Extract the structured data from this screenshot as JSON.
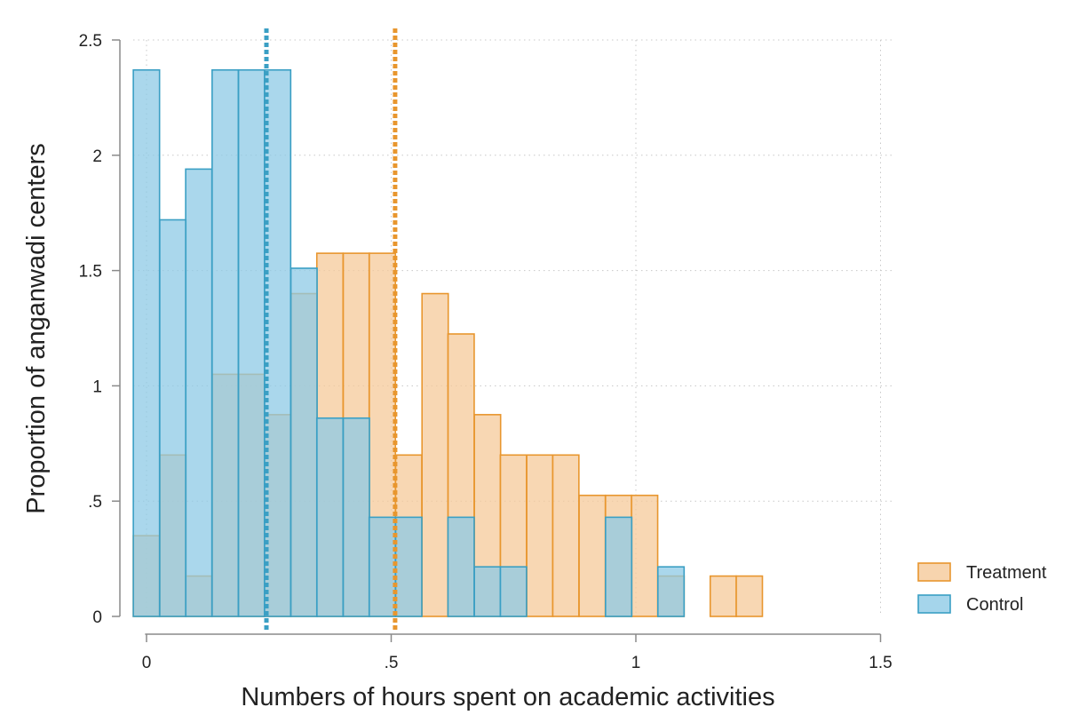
{
  "chart_data": {
    "type": "histogram",
    "title": "",
    "xlabel": "Numbers of hours spent on academic activities",
    "ylabel": "Proportion of anganwadi centers",
    "xlim": [
      0,
      1.5
    ],
    "ylim": [
      0,
      2.5
    ],
    "x_ticks": [
      {
        "value": 0,
        "label": "0"
      },
      {
        "value": 0.5,
        "label": ".5"
      },
      {
        "value": 1,
        "label": "1"
      },
      {
        "value": 1.5,
        "label": "1.5"
      }
    ],
    "y_ticks": [
      {
        "value": 0,
        "label": "0"
      },
      {
        "value": 0.5,
        "label": ".5"
      },
      {
        "value": 1,
        "label": "1"
      },
      {
        "value": 1.5,
        "label": "1.5"
      },
      {
        "value": 2,
        "label": "2"
      },
      {
        "value": 2.5,
        "label": "2.5"
      }
    ],
    "grid": true,
    "legend_position": "bottom-right",
    "bin_width": 0.0536,
    "series": [
      {
        "name": "Treatment",
        "fill": "#f5c99a",
        "stroke": "#e8962e",
        "mean": 0.508,
        "bins": [
          {
            "start": -0.027,
            "value": 0.35
          },
          {
            "start": 0.027,
            "value": 0.7
          },
          {
            "start": 0.08,
            "value": 0.175
          },
          {
            "start": 0.134,
            "value": 1.05
          },
          {
            "start": 0.188,
            "value": 1.05
          },
          {
            "start": 0.241,
            "value": 0.875
          },
          {
            "start": 0.295,
            "value": 1.4
          },
          {
            "start": 0.348,
            "value": 1.575
          },
          {
            "start": 0.402,
            "value": 1.575
          },
          {
            "start": 0.455,
            "value": 1.575
          },
          {
            "start": 0.509,
            "value": 0.7
          },
          {
            "start": 0.563,
            "value": 1.4
          },
          {
            "start": 0.616,
            "value": 1.225
          },
          {
            "start": 0.67,
            "value": 0.875
          },
          {
            "start": 0.723,
            "value": 0.7
          },
          {
            "start": 0.777,
            "value": 0.7
          },
          {
            "start": 0.83,
            "value": 0.7
          },
          {
            "start": 0.884,
            "value": 0.525
          },
          {
            "start": 0.938,
            "value": 0.525
          },
          {
            "start": 0.991,
            "value": 0.525
          },
          {
            "start": 1.045,
            "value": 0.175
          },
          {
            "start": 1.152,
            "value": 0.175
          },
          {
            "start": 1.205,
            "value": 0.175
          }
        ]
      },
      {
        "name": "Control",
        "fill": "#8ecae6",
        "stroke": "#3a9fc4",
        "mean": 0.245,
        "bins": [
          {
            "start": -0.027,
            "value": 2.37
          },
          {
            "start": 0.027,
            "value": 1.72
          },
          {
            "start": 0.08,
            "value": 1.94
          },
          {
            "start": 0.134,
            "value": 2.37
          },
          {
            "start": 0.188,
            "value": 2.37
          },
          {
            "start": 0.241,
            "value": 2.37
          },
          {
            "start": 0.295,
            "value": 1.51
          },
          {
            "start": 0.348,
            "value": 0.86
          },
          {
            "start": 0.402,
            "value": 0.86
          },
          {
            "start": 0.455,
            "value": 0.43
          },
          {
            "start": 0.509,
            "value": 0.43
          },
          {
            "start": 0.616,
            "value": 0.43
          },
          {
            "start": 0.67,
            "value": 0.215
          },
          {
            "start": 0.723,
            "value": 0.215
          },
          {
            "start": 0.938,
            "value": 0.43
          },
          {
            "start": 1.045,
            "value": 0.215
          }
        ]
      }
    ]
  }
}
